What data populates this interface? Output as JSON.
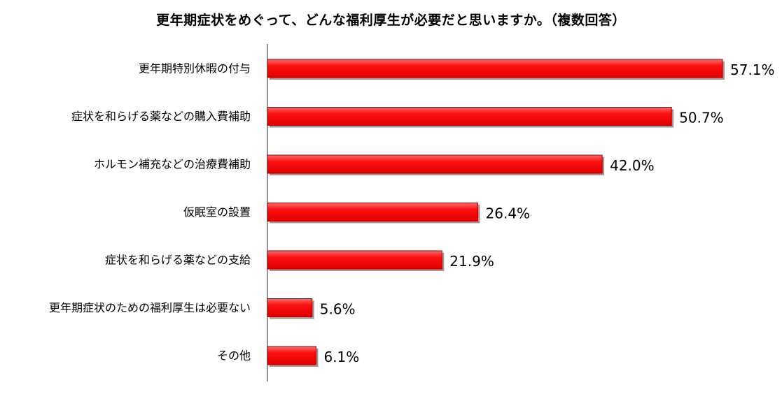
{
  "chart_data": {
    "type": "bar",
    "orientation": "horizontal",
    "title": "更年期症状をめぐって、どんな福利厚生が必要だと思いますか。（複数回答）",
    "categories": [
      "更年期特別休暇の付与",
      "症状を和らげる薬などの購入費補助",
      "ホルモン補充などの治療費補助",
      "仮眠室の設置",
      "症状を和らげる薬などの支給",
      "更年期症状のための福利厚生は必要ない",
      "その他"
    ],
    "values": [
      57.1,
      50.7,
      42.0,
      26.4,
      21.9,
      5.6,
      6.1
    ],
    "value_labels": [
      "57.1%",
      "50.7%",
      "42.0%",
      "26.4%",
      "21.9%",
      "5.6%",
      "6.1%"
    ],
    "xlim": [
      0,
      100
    ],
    "grid": false,
    "legend": "none",
    "bar_color": "#ff0000",
    "bar_edge_color": "#a00000"
  }
}
